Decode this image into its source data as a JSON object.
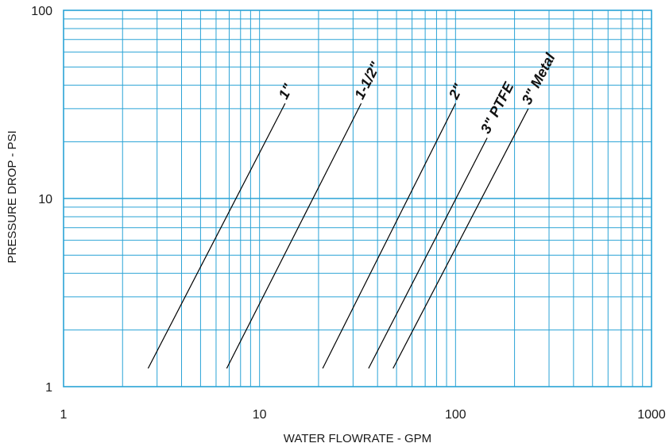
{
  "chart_data": {
    "type": "line",
    "x_scale": "log",
    "y_scale": "log",
    "xlim": [
      1,
      1000
    ],
    "ylim": [
      1,
      100
    ],
    "grid": true,
    "colors": {
      "grid": "#2aa3d6",
      "line": "#000000",
      "text": "#1a1a1a"
    },
    "x_ticks": [
      {
        "value": 1,
        "label": "1"
      },
      {
        "value": 10,
        "label": "10"
      },
      {
        "value": 100,
        "label": "100"
      },
      {
        "value": 1000,
        "label": "1000"
      }
    ],
    "y_ticks": [
      {
        "value": 1,
        "label": "1"
      },
      {
        "value": 10,
        "label": "10"
      },
      {
        "value": 100,
        "label": "100"
      }
    ],
    "xlabel": "WATER FLOWRATE - GPM",
    "ylabel": "PRESSURE DROP - PSI",
    "series": [
      {
        "name": "1\"",
        "points": [
          [
            2.7,
            1.25
          ],
          [
            13.5,
            32
          ]
        ]
      },
      {
        "name": "1-1/2\"",
        "points": [
          [
            6.8,
            1.25
          ],
          [
            33,
            32
          ]
        ]
      },
      {
        "name": "2\"",
        "points": [
          [
            21,
            1.25
          ],
          [
            100,
            32
          ]
        ]
      },
      {
        "name": "3\" PTFE",
        "points": [
          [
            36,
            1.25
          ],
          [
            145,
            21
          ]
        ]
      },
      {
        "name": "3\" Metal",
        "points": [
          [
            48,
            1.25
          ],
          [
            235,
            30
          ]
        ]
      }
    ]
  }
}
